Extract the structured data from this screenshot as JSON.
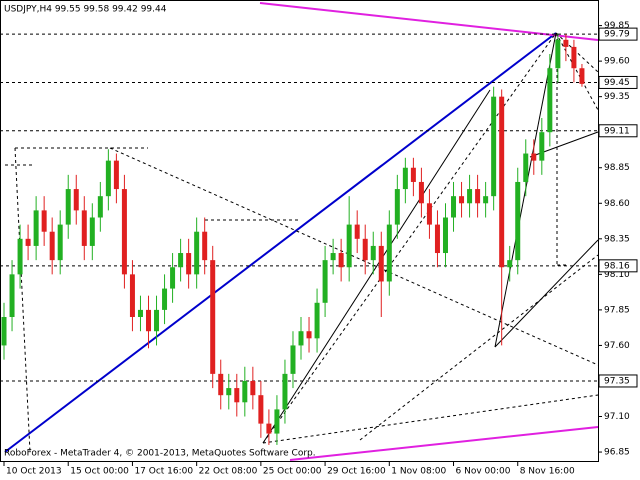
{
  "chart_data": {
    "type": "candlestick",
    "title": "USDJPY,H4  99.55 99.58 99.42 99.44",
    "footer": "RoboForex - MetaTrader 4, © 2001-2013, MetaQuotes Software Corp.",
    "up_color": "#22b022",
    "down_color": "#e02020",
    "open": [
      97.6,
      97.8,
      98.1,
      98.35,
      98.3,
      98.55,
      98.4,
      98.2,
      98.45,
      98.7,
      98.55,
      98.3,
      98.5,
      98.65,
      98.9,
      98.7,
      98.1,
      97.8,
      97.85,
      97.7,
      97.85,
      98.0,
      98.15,
      98.25,
      98.1,
      98.4,
      98.2,
      97.4,
      97.25,
      97.3,
      97.2,
      97.35,
      97.25,
      97.05,
      96.98,
      97.15,
      97.4,
      97.6,
      97.7,
      97.65,
      97.9,
      98.2,
      98.25,
      98.15,
      98.45,
      98.35,
      98.2,
      98.3,
      98.05,
      98.45,
      98.7,
      98.85,
      98.75,
      98.6,
      98.45,
      98.25,
      98.5,
      98.65,
      98.6,
      98.7,
      98.6,
      98.65,
      99.35,
      98.15,
      98.2,
      98.75,
      98.95,
      98.9,
      99.1,
      99.55,
      99.75,
      99.7,
      99.55
    ],
    "high": [
      97.9,
      98.2,
      98.45,
      98.45,
      98.65,
      98.65,
      98.5,
      98.55,
      98.8,
      98.8,
      98.65,
      98.6,
      98.75,
      98.98,
      98.95,
      98.8,
      98.2,
      97.95,
      97.95,
      97.95,
      98.1,
      98.25,
      98.35,
      98.35,
      98.5,
      98.5,
      98.3,
      97.5,
      97.4,
      97.4,
      97.45,
      97.45,
      97.35,
      97.15,
      97.25,
      97.5,
      97.7,
      97.8,
      97.8,
      98.0,
      98.3,
      98.35,
      98.35,
      98.65,
      98.55,
      98.45,
      98.4,
      98.4,
      98.55,
      98.8,
      98.92,
      98.92,
      98.85,
      98.7,
      98.55,
      98.6,
      98.75,
      98.75,
      98.8,
      98.8,
      98.75,
      99.42,
      99.4,
      98.3,
      98.85,
      99.05,
      99.05,
      99.2,
      99.65,
      99.79,
      99.79,
      99.75,
      99.58
    ],
    "low": [
      97.5,
      97.7,
      98.0,
      98.2,
      98.2,
      98.3,
      98.1,
      98.1,
      98.35,
      98.45,
      98.2,
      98.2,
      98.4,
      98.55,
      98.6,
      98.0,
      97.7,
      97.7,
      97.58,
      97.6,
      97.75,
      97.9,
      98.05,
      98.0,
      98.0,
      98.1,
      97.3,
      97.15,
      97.15,
      97.1,
      97.1,
      97.15,
      96.95,
      96.9,
      96.9,
      97.05,
      97.3,
      97.5,
      97.55,
      97.55,
      97.8,
      98.1,
      98.05,
      98.05,
      98.25,
      98.1,
      98.1,
      97.8,
      97.95,
      98.35,
      98.6,
      98.65,
      98.5,
      98.35,
      98.15,
      98.15,
      98.4,
      98.5,
      98.5,
      98.5,
      98.5,
      98.55,
      97.6,
      98.05,
      98.1,
      98.65,
      98.8,
      98.8,
      99.0,
      99.45,
      99.6,
      99.45,
      99.42
    ],
    "close": [
      97.8,
      98.1,
      98.35,
      98.3,
      98.55,
      98.4,
      98.2,
      98.45,
      98.7,
      98.55,
      98.3,
      98.5,
      98.65,
      98.9,
      98.7,
      98.1,
      97.8,
      97.85,
      97.7,
      97.85,
      98.0,
      98.15,
      98.25,
      98.1,
      98.4,
      98.2,
      97.4,
      97.25,
      97.3,
      97.2,
      97.35,
      97.25,
      97.05,
      96.98,
      97.15,
      97.4,
      97.6,
      97.7,
      97.65,
      97.9,
      98.2,
      98.25,
      98.15,
      98.45,
      98.35,
      98.2,
      98.3,
      98.05,
      98.45,
      98.7,
      98.85,
      98.75,
      98.6,
      98.45,
      98.25,
      98.5,
      98.65,
      98.6,
      98.7,
      98.6,
      98.65,
      99.35,
      98.15,
      98.2,
      98.75,
      98.95,
      98.9,
      99.1,
      99.55,
      99.75,
      99.7,
      99.55,
      99.44
    ],
    "xlim": [
      -0.5,
      74
    ],
    "xticks": [
      {
        "value": 0,
        "label": "10 Oct 2013"
      },
      {
        "value": 8,
        "label": "15 Oct 00:00"
      },
      {
        "value": 16,
        "label": "17 Oct 16:00"
      },
      {
        "value": 24,
        "label": "22 Oct 08:00"
      },
      {
        "value": 32,
        "label": "25 Oct 00:00"
      },
      {
        "value": 40,
        "label": "29 Oct 16:00"
      },
      {
        "value": 48,
        "label": "1 Nov 08:00"
      },
      {
        "value": 56,
        "label": "6 Nov 00:00"
      },
      {
        "value": 64,
        "label": "8 Nov 16:00"
      }
    ],
    "ylim": [
      96.78,
      100.03
    ],
    "yticks": [
      99.85,
      {
        "value": 99.6,
        "label": "99.60"
      },
      99.35,
      {
        "value": 99.1,
        "label": "99.10"
      },
      98.85,
      {
        "value": 98.6,
        "label": "98.60"
      },
      98.35,
      {
        "value": 98.1,
        "label": "98.10"
      },
      97.85,
      {
        "value": 97.6,
        "label": "97.60"
      },
      97.35,
      {
        "value": 97.1,
        "label": "97.10"
      },
      96.85
    ],
    "levels": [
      99.79,
      99.45,
      99.11,
      98.16,
      97.35
    ]
  }
}
